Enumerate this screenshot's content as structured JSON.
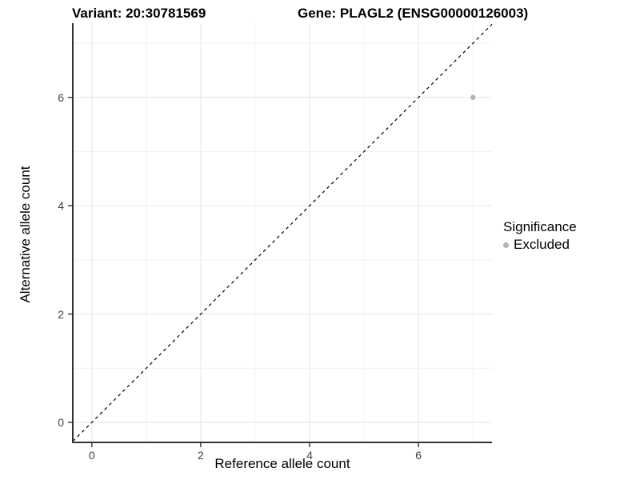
{
  "chart_data": {
    "type": "scatter",
    "titles": [
      "Variant: 20:30781569",
      "Gene: PLAGL2 (ENSG00000126003)"
    ],
    "xlabel": "Reference allele count",
    "ylabel": "Alternative allele count",
    "xlim": [
      -0.35,
      7.35
    ],
    "ylim": [
      -0.37,
      7.37
    ],
    "xticks": [
      0,
      2,
      4,
      6
    ],
    "yticks": [
      0,
      2,
      4,
      6
    ],
    "xminor": [
      1,
      3,
      5,
      7
    ],
    "yminor": [
      1,
      3,
      5,
      7
    ],
    "points": [
      {
        "x": 7,
        "y": 6,
        "significance": "Excluded"
      }
    ],
    "identity_line": {
      "equation": "y = x",
      "style": "dashed"
    },
    "legend": {
      "position": "right",
      "title": "Significance",
      "items": [
        {
          "label": "Excluded",
          "color": "#b3b3b3"
        }
      ]
    },
    "grid": true
  },
  "colors": {
    "background": "#ffffff",
    "grid_major": "#e5e5e5",
    "grid_minor": "#f2f2f2",
    "axis_line": "#333333",
    "tick_mark": "#333333",
    "tick_label": "#404040",
    "point": "#b3b3b3",
    "dashed_line": "#000000",
    "text": "#000000"
  }
}
